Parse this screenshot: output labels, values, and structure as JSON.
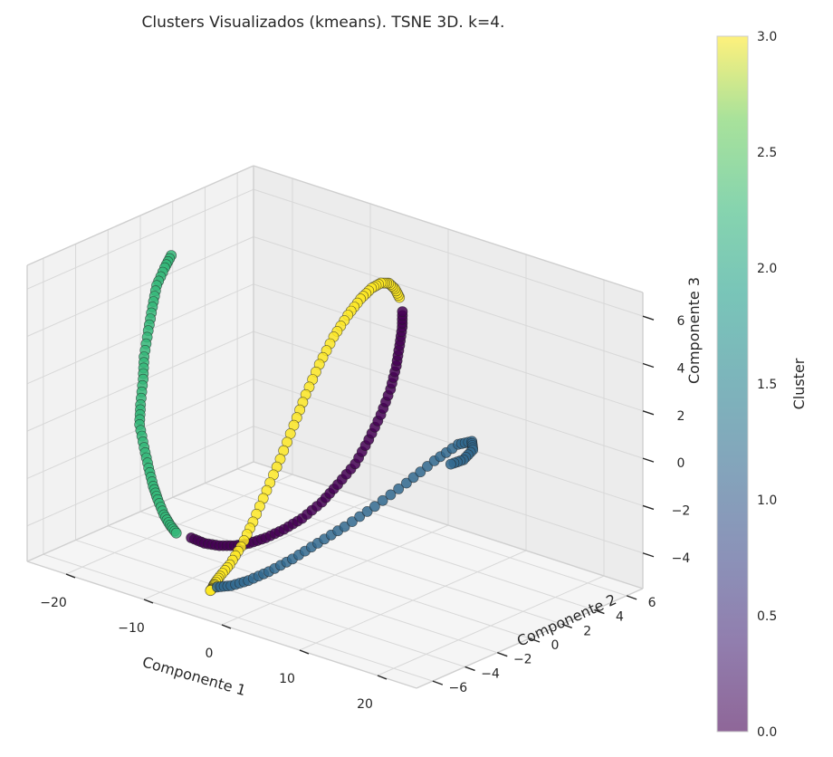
{
  "chart_data": {
    "type": "scatter",
    "projection": "3d",
    "title": "Clusters Visualizados (kmeans). TSNE 3D. k=4.",
    "xlabel": "Componente 1",
    "ylabel": "Componente 2",
    "zlabel": "Componente 3",
    "x_ticks": [
      "−20",
      "−10",
      "0",
      "10",
      "20"
    ],
    "y_ticks": [
      "−6",
      "−4",
      "−2",
      "0",
      "2",
      "4",
      "6"
    ],
    "z_ticks": [
      "−4",
      "−2",
      "0",
      "2",
      "4",
      "6"
    ],
    "xlim": [
      -25,
      25
    ],
    "ylim": [
      -7,
      7
    ],
    "zlim": [
      -5.5,
      7
    ],
    "grid": true,
    "colorbar": {
      "label": "Cluster",
      "colormap": "viridis",
      "range": [
        0,
        3
      ],
      "ticks": [
        "0.0",
        "0.5",
        "1.0",
        "1.5",
        "2.0",
        "2.5",
        "3.0"
      ]
    },
    "point_alpha": 0.6,
    "series": [
      {
        "cluster": 2,
        "color": "#35b779",
        "points": [
          [
            -20,
            -0.5,
            6.0
          ],
          [
            -20,
            -0.9,
            5.6
          ],
          [
            -20,
            -1.4,
            5.0
          ],
          [
            -19.5,
            -1.9,
            4.3
          ],
          [
            -19,
            -2.4,
            3.5
          ],
          [
            -18.5,
            -2.9,
            2.6
          ],
          [
            -18,
            -3.2,
            1.8
          ],
          [
            -17.5,
            -3.6,
            0.9
          ],
          [
            -17,
            -3.9,
            0.2
          ],
          [
            -16,
            -4.1,
            -0.6
          ],
          [
            -15,
            -4.3,
            -1.3
          ],
          [
            -14,
            -4.5,
            -1.9
          ],
          [
            -13,
            -4.7,
            -2.3
          ],
          [
            -12,
            -4.8,
            -2.8
          ],
          [
            -11,
            -4.9,
            -3.1
          ],
          [
            -10,
            -5.0,
            -3.3
          ]
        ]
      },
      {
        "cluster": 0,
        "color": "#440154",
        "points": [
          [
            -8.5,
            -4.8,
            -3.4
          ],
          [
            -7,
            -4.7,
            -3.5
          ],
          [
            -5.5,
            -4.5,
            -3.5
          ],
          [
            -4,
            -4.3,
            -3.4
          ],
          [
            -2.5,
            -4.1,
            -3.2
          ],
          [
            -1,
            -3.8,
            -2.9
          ],
          [
            0.5,
            -3.4,
            -2.5
          ],
          [
            2,
            -3.0,
            -2.0
          ],
          [
            3.5,
            -2.5,
            -1.3
          ],
          [
            4.5,
            -2.0,
            -0.6
          ],
          [
            5.5,
            -1.4,
            0.2
          ],
          [
            6,
            -0.8,
            1.1
          ],
          [
            6.3,
            -0.2,
            2.0
          ],
          [
            6.3,
            0.4,
            2.9
          ],
          [
            6,
            0.9,
            3.7
          ],
          [
            5.6,
            1.3,
            4.4
          ],
          [
            5.1,
            1.7,
            5.0
          ],
          [
            4.5,
            2.0,
            5.5
          ]
        ]
      },
      {
        "cluster": 3,
        "color": "#fde725",
        "points": [
          [
            3.5,
            2.3,
            5.9
          ],
          [
            2.5,
            2.5,
            6.1
          ],
          [
            1.5,
            2.6,
            6.2
          ],
          [
            0.5,
            2.6,
            6.1
          ],
          [
            -0.5,
            2.5,
            5.8
          ],
          [
            -1.5,
            2.3,
            5.3
          ],
          [
            -2.5,
            2.0,
            4.6
          ],
          [
            -3.5,
            1.6,
            3.7
          ],
          [
            -4.3,
            1.1,
            2.6
          ],
          [
            -5,
            0.6,
            1.4
          ],
          [
            -5.5,
            0.1,
            0.2
          ],
          [
            -6,
            -0.5,
            -1.1
          ],
          [
            -6.5,
            -1.1,
            -2.3
          ],
          [
            -7,
            -1.7,
            -3.5
          ],
          [
            -7.3,
            -2.3,
            -4.4
          ],
          [
            -7.5,
            -2.9,
            -5.0
          ],
          [
            -7.5,
            -3.5,
            -5.3
          ],
          [
            -7,
            -4.1,
            -5.4
          ],
          [
            -6,
            -4.7,
            -5.3
          ],
          [
            -5,
            -5.3,
            -5.1
          ]
        ]
      },
      {
        "cluster": 1,
        "color": "#31688e",
        "points": [
          [
            -3.5,
            -5.6,
            -4.7
          ],
          [
            -1.5,
            -5.7,
            -4.4
          ],
          [
            0.5,
            -5.6,
            -4.0
          ],
          [
            2.5,
            -5.3,
            -3.5
          ],
          [
            4.5,
            -4.8,
            -2.9
          ],
          [
            6.5,
            -4.2,
            -2.2
          ],
          [
            8.5,
            -3.5,
            -1.5
          ],
          [
            10.5,
            -2.6,
            -0.7
          ],
          [
            12.5,
            -1.6,
            0.2
          ],
          [
            14,
            -0.6,
            1.0
          ],
          [
            15,
            0.4,
            1.5
          ],
          [
            15.5,
            1.0,
            1.5
          ],
          [
            15,
            1.3,
            1.0
          ],
          [
            14,
            1.2,
            0.5
          ],
          [
            13,
            0.9,
            0.3
          ]
        ]
      }
    ]
  }
}
